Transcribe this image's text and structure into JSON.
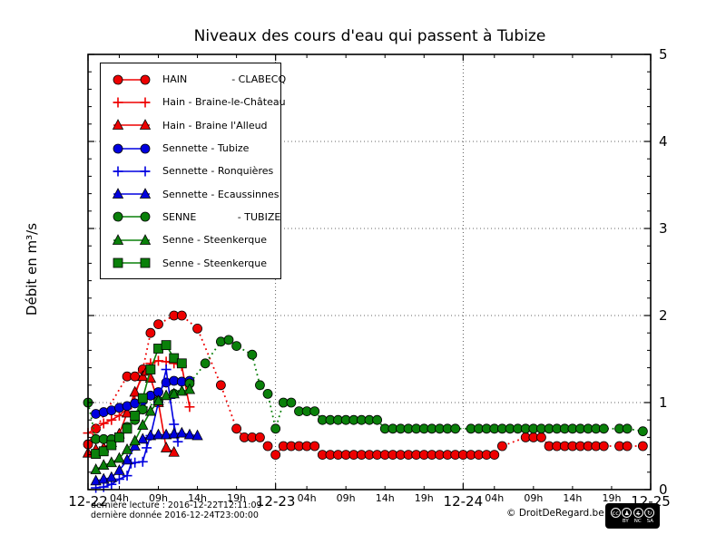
{
  "title": "Niveaux des cours d'eau qui passent à Tubize",
  "y_axis_label": "Débit en m³/s",
  "footer": {
    "last_read": "dernière lecture : 2016-12-22T12:11:09",
    "last_data": "dernière donnée  2016-12-24T23:00:00",
    "copyright": "© DroitDeRegard.be",
    "license_terms": [
      "BY",
      "NC",
      "SA"
    ],
    "license_glyphs": [
      "cc",
      "♟",
      "$",
      "↻"
    ]
  },
  "chart_data": {
    "type": "line",
    "title": "Niveaux des cours d'eau qui passent à Tubize",
    "xlabel": "",
    "ylabel": "Débit en m³/s",
    "ylim": [
      0,
      5
    ],
    "y_ticks": [
      0,
      1,
      2,
      3,
      4,
      5
    ],
    "grid": true,
    "legend_position": "upper left",
    "x_axis": {
      "day_labels": [
        "12-22",
        "12-23",
        "12-24",
        "12-25"
      ],
      "day_hours": [
        0,
        24,
        48,
        72
      ],
      "minor_hour_labels": [
        "04h",
        "09h",
        "14h",
        "19h"
      ],
      "minor_hour_offsets": [
        4,
        9,
        14,
        19
      ],
      "hours_total": 72
    },
    "colors": {
      "hain": "#ee0000",
      "sennette": "#0000e0",
      "senne": "#0a800a"
    },
    "series": [
      {
        "id": "hain-clabecq",
        "label": "HAIN              - CLABECQ",
        "color": "#ee0000",
        "marker": "circle",
        "line": "dotted",
        "points": [
          [
            0,
            0.52
          ],
          [
            1,
            0.7
          ],
          [
            5,
            1.3
          ],
          [
            6,
            1.3
          ],
          [
            7,
            1.38
          ],
          [
            8,
            1.8
          ],
          [
            9,
            1.9
          ],
          [
            11,
            2.0
          ],
          [
            12,
            2.0
          ],
          [
            14,
            1.85
          ],
          [
            17,
            1.2
          ],
          [
            19,
            0.7
          ],
          [
            20,
            0.6
          ],
          [
            21,
            0.6
          ],
          [
            22,
            0.6
          ],
          [
            23,
            0.5
          ],
          [
            24,
            0.4
          ],
          [
            25,
            0.5
          ],
          [
            26,
            0.5
          ],
          [
            27,
            0.5
          ],
          [
            28,
            0.5
          ],
          [
            29,
            0.5
          ],
          [
            30,
            0.4
          ],
          [
            31,
            0.4
          ],
          [
            32,
            0.4
          ],
          [
            33,
            0.4
          ],
          [
            34,
            0.4
          ],
          [
            35,
            0.4
          ],
          [
            36,
            0.4
          ],
          [
            37,
            0.4
          ],
          [
            38,
            0.4
          ],
          [
            39,
            0.4
          ],
          [
            40,
            0.4
          ],
          [
            41,
            0.4
          ],
          [
            42,
            0.4
          ],
          [
            43,
            0.4
          ],
          [
            44,
            0.4
          ],
          [
            45,
            0.4
          ],
          [
            46,
            0.4
          ],
          [
            47,
            0.4
          ],
          [
            48,
            0.4
          ],
          [
            49,
            0.4
          ],
          [
            50,
            0.4
          ],
          [
            51,
            0.4
          ],
          [
            52,
            0.4
          ],
          [
            53,
            0.5
          ],
          [
            56,
            0.6
          ],
          [
            57,
            0.6
          ],
          [
            58,
            0.6
          ],
          [
            59,
            0.5
          ],
          [
            60,
            0.5
          ],
          [
            61,
            0.5
          ],
          [
            62,
            0.5
          ],
          [
            63,
            0.5
          ],
          [
            64,
            0.5
          ],
          [
            65,
            0.5
          ],
          [
            66,
            0.5
          ],
          [
            68,
            0.5
          ],
          [
            69,
            0.5
          ],
          [
            71,
            0.5
          ]
        ]
      },
      {
        "id": "hain-braine-le-chateau",
        "label": "Hain - Braine-le-Château",
        "color": "#ee0000",
        "marker": "plus",
        "line": "solid",
        "points": [
          [
            0,
            0.65
          ],
          [
            1,
            0.7
          ],
          [
            2,
            0.76
          ],
          [
            3,
            0.8
          ],
          [
            4,
            0.85
          ],
          [
            5,
            0.93
          ],
          [
            6,
            1.08
          ],
          [
            7,
            1.35
          ],
          [
            8,
            1.45
          ],
          [
            9,
            1.48
          ],
          [
            10,
            1.47
          ],
          [
            11,
            1.45
          ],
          [
            12,
            1.42
          ],
          [
            13,
            0.95
          ]
        ]
      },
      {
        "id": "hain-braine-l-alleud",
        "label": "Hain - Braine l'Alleud",
        "color": "#ee0000",
        "marker": "triangle",
        "line": "solid",
        "points": [
          [
            0,
            0.42
          ],
          [
            1,
            0.46
          ],
          [
            2,
            0.48
          ],
          [
            3,
            0.54
          ],
          [
            4,
            0.64
          ],
          [
            5,
            0.88
          ],
          [
            6,
            1.12
          ],
          [
            7,
            1.3
          ],
          [
            7.5,
            1.36
          ],
          [
            8,
            1.28
          ],
          [
            9,
            1.0
          ],
          [
            10,
            0.48
          ],
          [
            11,
            0.43
          ]
        ]
      },
      {
        "id": "sennette-tubize",
        "label": "Sennette - Tubize",
        "color": "#0000e0",
        "marker": "circle",
        "line": "solid",
        "points": [
          [
            1,
            0.87
          ],
          [
            2,
            0.89
          ],
          [
            3,
            0.91
          ],
          [
            4,
            0.94
          ],
          [
            5,
            0.96
          ],
          [
            6,
            0.99
          ],
          [
            7,
            1.02
          ],
          [
            8,
            1.08
          ],
          [
            9,
            1.12
          ],
          [
            10,
            1.23
          ],
          [
            11,
            1.25
          ],
          [
            12,
            1.24
          ],
          [
            13,
            1.25
          ]
        ]
      },
      {
        "id": "sennette-ronquieres",
        "label": "Sennette - Ronquières",
        "color": "#0000e0",
        "marker": "plus",
        "line": "solid",
        "points": [
          [
            1,
            0.02
          ],
          [
            2,
            0.03
          ],
          [
            3,
            0.06
          ],
          [
            4,
            0.12
          ],
          [
            5,
            0.16
          ],
          [
            5.5,
            0.3
          ],
          [
            6,
            0.31
          ],
          [
            7,
            0.32
          ],
          [
            7.5,
            0.48
          ],
          [
            8,
            0.62
          ],
          [
            9,
            1.0
          ],
          [
            10,
            1.38
          ],
          [
            10.5,
            1.05
          ],
          [
            11,
            0.75
          ],
          [
            11.5,
            0.55
          ]
        ]
      },
      {
        "id": "sennette-ecaussinnes",
        "label": "Sennette - Ecaussinnes",
        "color": "#0000e0",
        "marker": "triangle",
        "line": "solid",
        "points": [
          [
            1,
            0.1
          ],
          [
            2,
            0.12
          ],
          [
            3,
            0.14
          ],
          [
            4,
            0.22
          ],
          [
            5,
            0.34
          ],
          [
            6,
            0.5
          ],
          [
            7,
            0.58
          ],
          [
            8,
            0.62
          ],
          [
            9,
            0.63
          ],
          [
            10,
            0.63
          ],
          [
            11,
            0.64
          ],
          [
            12,
            0.65
          ],
          [
            13,
            0.63
          ],
          [
            14,
            0.62
          ]
        ]
      },
      {
        "id": "senne-tubize",
        "label": "SENNE             - TUBIZE",
        "color": "#0a800a",
        "marker": "circle",
        "line": "dotted",
        "points": [
          [
            0,
            1.0
          ],
          [
            1,
            0.58
          ],
          [
            2,
            0.58
          ],
          [
            3,
            0.58
          ],
          [
            4,
            0.6
          ],
          [
            5,
            0.72
          ],
          [
            6,
            0.8
          ],
          [
            7,
            0.92
          ],
          [
            9,
            1.02
          ],
          [
            11,
            1.1
          ],
          [
            13,
            1.22
          ],
          [
            15,
            1.45
          ],
          [
            17,
            1.7
          ],
          [
            18,
            1.72
          ],
          [
            19,
            1.65
          ],
          [
            21,
            1.55
          ],
          [
            22,
            1.2
          ],
          [
            23,
            1.1
          ],
          [
            24,
            0.7
          ],
          [
            25,
            1.0
          ],
          [
            26,
            1.0
          ],
          [
            27,
            0.9
          ],
          [
            28,
            0.9
          ],
          [
            29,
            0.9
          ],
          [
            30,
            0.8
          ],
          [
            31,
            0.8
          ],
          [
            32,
            0.8
          ],
          [
            33,
            0.8
          ],
          [
            34,
            0.8
          ],
          [
            35,
            0.8
          ],
          [
            36,
            0.8
          ],
          [
            37,
            0.8
          ],
          [
            38,
            0.7
          ],
          [
            39,
            0.7
          ],
          [
            40,
            0.7
          ],
          [
            41,
            0.7
          ],
          [
            42,
            0.7
          ],
          [
            43,
            0.7
          ],
          [
            44,
            0.7
          ],
          [
            45,
            0.7
          ],
          [
            46,
            0.7
          ],
          [
            47,
            0.7
          ],
          [
            49,
            0.7
          ],
          [
            50,
            0.7
          ],
          [
            51,
            0.7
          ],
          [
            52,
            0.7
          ],
          [
            53,
            0.7
          ],
          [
            54,
            0.7
          ],
          [
            55,
            0.7
          ],
          [
            56,
            0.7
          ],
          [
            57,
            0.7
          ],
          [
            58,
            0.7
          ],
          [
            59,
            0.7
          ],
          [
            60,
            0.7
          ],
          [
            61,
            0.7
          ],
          [
            62,
            0.7
          ],
          [
            63,
            0.7
          ],
          [
            64,
            0.7
          ],
          [
            65,
            0.7
          ],
          [
            66,
            0.7
          ],
          [
            68,
            0.7
          ],
          [
            69,
            0.7
          ],
          [
            71,
            0.67
          ]
        ]
      },
      {
        "id": "senne-steenkerque-1",
        "label": "Senne - Steenkerque",
        "color": "#0a800a",
        "marker": "triangle",
        "line": "solid",
        "points": [
          [
            1,
            0.23
          ],
          [
            2,
            0.28
          ],
          [
            3,
            0.31
          ],
          [
            4,
            0.36
          ],
          [
            5,
            0.46
          ],
          [
            6,
            0.56
          ],
          [
            7,
            0.74
          ],
          [
            8,
            0.9
          ],
          [
            9,
            1.02
          ],
          [
            10,
            1.08
          ],
          [
            11,
            1.1
          ],
          [
            12,
            1.13
          ],
          [
            13,
            1.15
          ]
        ]
      },
      {
        "id": "senne-steenkerque-2",
        "label": "Senne - Steenkerque",
        "color": "#0a800a",
        "marker": "square",
        "line": "solid",
        "points": [
          [
            1,
            0.41
          ],
          [
            2,
            0.44
          ],
          [
            3,
            0.51
          ],
          [
            4,
            0.6
          ],
          [
            5,
            0.7
          ],
          [
            6,
            0.85
          ],
          [
            7,
            1.05
          ],
          [
            8,
            1.38
          ],
          [
            9,
            1.62
          ],
          [
            10,
            1.66
          ],
          [
            11,
            1.51
          ],
          [
            12,
            1.45
          ]
        ]
      }
    ]
  }
}
